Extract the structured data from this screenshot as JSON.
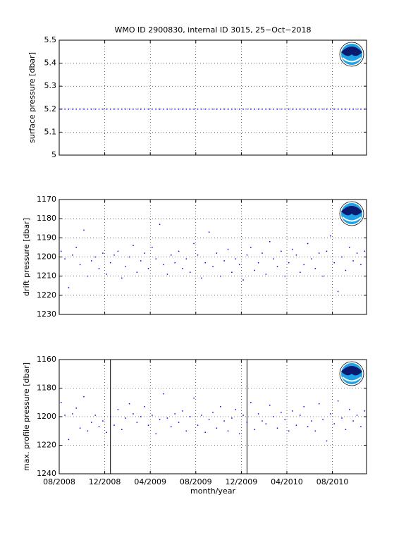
{
  "chart_data": [
    {
      "type": "scatter",
      "title": "WMO ID 2900830, internal ID 3015, 25−Oct−2018",
      "ylabel": "surface pressure [dbar]",
      "color": "#0000ff",
      "grid": true,
      "xtick_labels": false,
      "y_reversed": false,
      "xlim": [
        "08/2008",
        "11/2010"
      ],
      "xticks": [
        "08/2008",
        "12/2008",
        "04/2009",
        "08/2009",
        "12/2009",
        "04/2010",
        "08/2010"
      ],
      "ylim": [
        5,
        5.5
      ],
      "yticks": [
        5,
        5.1,
        5.2,
        5.3,
        5.4,
        5.5
      ],
      "x": [
        "08/2008",
        "08/2008",
        "08/2008",
        "09/2008",
        "09/2008",
        "09/2008",
        "10/2008",
        "10/2008",
        "10/2008",
        "11/2008",
        "11/2008",
        "11/2008",
        "12/2008",
        "12/2008",
        "12/2008",
        "01/2009",
        "01/2009",
        "01/2009",
        "02/2009",
        "02/2009",
        "02/2009",
        "03/2009",
        "03/2009",
        "03/2009",
        "04/2009",
        "04/2009",
        "04/2009",
        "05/2009",
        "05/2009",
        "05/2009",
        "06/2009",
        "06/2009",
        "06/2009",
        "07/2009",
        "07/2009",
        "07/2009",
        "08/2009",
        "08/2009",
        "08/2009",
        "09/2009",
        "09/2009",
        "09/2009",
        "10/2009",
        "10/2009",
        "10/2009",
        "11/2009",
        "11/2009",
        "11/2009",
        "12/2009",
        "12/2009",
        "12/2009",
        "01/2010",
        "01/2010",
        "01/2010",
        "02/2010",
        "02/2010",
        "02/2010",
        "03/2010",
        "03/2010",
        "03/2010",
        "04/2010",
        "04/2010",
        "04/2010",
        "05/2010",
        "05/2010",
        "05/2010",
        "06/2010",
        "06/2010",
        "06/2010",
        "07/2010",
        "07/2010",
        "07/2010",
        "08/2010",
        "08/2010",
        "08/2010",
        "09/2010",
        "09/2010",
        "09/2010",
        "10/2010",
        "10/2010",
        "10/2010"
      ],
      "values": [
        5.2,
        5.2,
        5.2,
        5.2,
        5.2,
        5.2,
        5.2,
        5.2,
        5.2,
        5.2,
        5.2,
        5.2,
        5.2,
        5.2,
        5.2,
        5.2,
        5.2,
        5.2,
        5.2,
        5.2,
        5.2,
        5.2,
        5.2,
        5.2,
        5.2,
        5.2,
        5.2,
        5.2,
        5.2,
        5.2,
        5.2,
        5.2,
        5.2,
        5.2,
        5.2,
        5.2,
        5.2,
        5.2,
        5.2,
        5.2,
        5.2,
        5.2,
        5.2,
        5.2,
        5.2,
        5.2,
        5.2,
        5.2,
        5.2,
        5.2,
        5.2,
        5.2,
        5.2,
        5.2,
        5.2,
        5.2,
        5.2,
        5.2,
        5.2,
        5.2,
        5.2,
        5.2,
        5.2,
        5.2,
        5.2,
        5.2,
        5.2,
        5.2,
        5.2,
        5.2,
        5.2,
        5.2,
        5.2,
        5.2,
        5.2,
        5.2,
        5.2,
        5.2,
        5.2,
        5.2,
        5.2
      ]
    },
    {
      "type": "scatter",
      "ylabel": "drift pressure [dbar]",
      "color": "#0000ff",
      "grid": true,
      "xtick_labels": false,
      "y_reversed": true,
      "xlim": [
        "08/2008",
        "11/2010"
      ],
      "xticks": [
        "08/2008",
        "12/2008",
        "04/2009",
        "08/2009",
        "12/2009",
        "04/2010",
        "08/2010"
      ],
      "ylim": [
        1170,
        1230
      ],
      "yticks": [
        1170,
        1180,
        1190,
        1200,
        1210,
        1220,
        1230
      ],
      "x": [
        "08/2008",
        "08/2008",
        "08/2008",
        "09/2008",
        "09/2008",
        "09/2008",
        "10/2008",
        "10/2008",
        "10/2008",
        "11/2008",
        "11/2008",
        "11/2008",
        "12/2008",
        "12/2008",
        "12/2008",
        "01/2009",
        "01/2009",
        "01/2009",
        "02/2009",
        "02/2009",
        "02/2009",
        "03/2009",
        "03/2009",
        "03/2009",
        "04/2009",
        "04/2009",
        "04/2009",
        "05/2009",
        "05/2009",
        "05/2009",
        "06/2009",
        "06/2009",
        "06/2009",
        "07/2009",
        "07/2009",
        "07/2009",
        "08/2009",
        "08/2009",
        "08/2009",
        "09/2009",
        "09/2009",
        "09/2009",
        "10/2009",
        "10/2009",
        "10/2009",
        "11/2009",
        "11/2009",
        "11/2009",
        "12/2009",
        "12/2009",
        "12/2009",
        "01/2010",
        "01/2010",
        "01/2010",
        "02/2010",
        "02/2010",
        "02/2010",
        "03/2010",
        "03/2010",
        "03/2010",
        "04/2010",
        "04/2010",
        "04/2010",
        "05/2010",
        "05/2010",
        "05/2010",
        "06/2010",
        "06/2010",
        "06/2010",
        "07/2010",
        "07/2010",
        "07/2010",
        "08/2010",
        "08/2010",
        "08/2010",
        "09/2010",
        "09/2010",
        "09/2010",
        "10/2010",
        "10/2010",
        "10/2010"
      ],
      "values": [
        1197,
        1201,
        1216,
        1199,
        1195,
        1204,
        1186,
        1210,
        1202,
        1200,
        1206,
        1198,
        1209,
        1203,
        1199,
        1197,
        1211,
        1205,
        1200,
        1194,
        1208,
        1202,
        1198,
        1206,
        1195,
        1201,
        1183,
        1204,
        1209,
        1199,
        1203,
        1197,
        1206,
        1201,
        1208,
        1193,
        1199,
        1211,
        1203,
        1187,
        1205,
        1198,
        1210,
        1202,
        1196,
        1208,
        1201,
        1204,
        1212,
        1199,
        1195,
        1207,
        1203,
        1198,
        1209,
        1192,
        1201,
        1205,
        1197,
        1210,
        1203,
        1196,
        1199,
        1208,
        1204,
        1193,
        1201,
        1206,
        1198,
        1210,
        1197,
        1189,
        1203,
        1218,
        1200,
        1207,
        1195,
        1202,
        1198,
        1204,
        1197
      ]
    },
    {
      "type": "scatter",
      "ylabel": "max. profile pressure [dbar]",
      "xlabel": "month/year",
      "color": "#0000ff",
      "grid": true,
      "xtick_labels": true,
      "y_reversed": true,
      "xlim": [
        "08/2008",
        "11/2010"
      ],
      "xticks": [
        "08/2008",
        "12/2008",
        "04/2009",
        "08/2009",
        "12/2009",
        "04/2010",
        "08/2010"
      ],
      "ylim": [
        1160,
        1240
      ],
      "yticks": [
        1160,
        1180,
        1200,
        1220,
        1240
      ],
      "vlines": [
        "12/2008",
        "12/2009"
      ],
      "x": [
        "08/2008",
        "08/2008",
        "08/2008",
        "09/2008",
        "09/2008",
        "09/2008",
        "10/2008",
        "10/2008",
        "10/2008",
        "11/2008",
        "11/2008",
        "11/2008",
        "12/2008",
        "12/2008",
        "12/2008",
        "01/2009",
        "01/2009",
        "01/2009",
        "02/2009",
        "02/2009",
        "02/2009",
        "03/2009",
        "03/2009",
        "03/2009",
        "04/2009",
        "04/2009",
        "04/2009",
        "05/2009",
        "05/2009",
        "05/2009",
        "06/2009",
        "06/2009",
        "06/2009",
        "07/2009",
        "07/2009",
        "07/2009",
        "08/2009",
        "08/2009",
        "08/2009",
        "09/2009",
        "09/2009",
        "09/2009",
        "10/2009",
        "10/2009",
        "10/2009",
        "11/2009",
        "11/2009",
        "11/2009",
        "12/2009",
        "12/2009",
        "12/2009",
        "01/2010",
        "01/2010",
        "01/2010",
        "02/2010",
        "02/2010",
        "02/2010",
        "03/2010",
        "03/2010",
        "03/2010",
        "04/2010",
        "04/2010",
        "04/2010",
        "05/2010",
        "05/2010",
        "05/2010",
        "06/2010",
        "06/2010",
        "06/2010",
        "07/2010",
        "07/2010",
        "07/2010",
        "08/2010",
        "08/2010",
        "08/2010",
        "09/2010",
        "09/2010",
        "09/2010",
        "10/2010",
        "10/2010",
        "10/2010"
      ],
      "values": [
        1190,
        1199,
        1216,
        1198,
        1194,
        1208,
        1186,
        1210,
        1204,
        1199,
        1207,
        1203,
        1211,
        1200,
        1206,
        1195,
        1209,
        1201,
        1191,
        1198,
        1204,
        1200,
        1193,
        1206,
        1199,
        1212,
        1202,
        1184,
        1201,
        1207,
        1198,
        1204,
        1196,
        1210,
        1200,
        1187,
        1206,
        1199,
        1211,
        1202,
        1197,
        1208,
        1193,
        1203,
        1210,
        1201,
        1195,
        1212,
        1199,
        1204,
        1190,
        1209,
        1198,
        1203,
        1205,
        1192,
        1200,
        1208,
        1197,
        1202,
        1210,
        1196,
        1206,
        1199,
        1193,
        1207,
        1203,
        1210,
        1191,
        1202,
        1217,
        1198,
        1205,
        1189,
        1201,
        1209,
        1195,
        1203,
        1199,
        1207,
        1196
      ]
    }
  ]
}
